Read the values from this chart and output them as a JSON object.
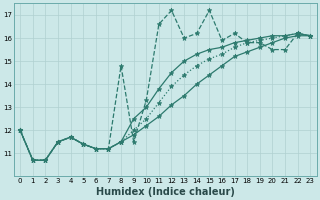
{
  "xlabel": "Humidex (Indice chaleur)",
  "ylabel": "",
  "xlim": [
    -0.5,
    23.5
  ],
  "ylim": [
    10.0,
    17.5
  ],
  "yticks": [
    11,
    12,
    13,
    14,
    15,
    16,
    17
  ],
  "xticks": [
    0,
    1,
    2,
    3,
    4,
    5,
    6,
    7,
    8,
    9,
    10,
    11,
    12,
    13,
    14,
    15,
    16,
    17,
    18,
    19,
    20,
    21,
    22,
    23
  ],
  "background_color": "#cce8e8",
  "grid_color": "#b0d0d0",
  "line_color": "#2d7a6e",
  "lines": [
    {
      "y": [
        12.0,
        10.7,
        10.7,
        11.5,
        11.7,
        11.4,
        11.2,
        11.2,
        14.8,
        11.5,
        13.3,
        16.6,
        17.2,
        16.0,
        16.2,
        17.2,
        15.9,
        16.2,
        15.8,
        15.8,
        15.5,
        15.5,
        16.2,
        16.1
      ],
      "style": "--",
      "lw": 0.9
    },
    {
      "y": [
        12.0,
        10.7,
        10.7,
        11.5,
        11.7,
        11.4,
        11.2,
        11.2,
        11.5,
        12.5,
        13.0,
        13.8,
        14.5,
        15.0,
        15.3,
        15.5,
        15.6,
        15.8,
        15.9,
        16.0,
        16.1,
        16.1,
        16.2,
        16.1
      ],
      "style": "-",
      "lw": 0.9
    },
    {
      "y": [
        12.0,
        10.7,
        10.7,
        11.5,
        11.7,
        11.4,
        11.2,
        11.2,
        11.5,
        11.8,
        12.2,
        12.6,
        13.1,
        13.5,
        14.0,
        14.4,
        14.8,
        15.2,
        15.4,
        15.6,
        15.8,
        16.0,
        16.1,
        16.1
      ],
      "style": "-",
      "lw": 0.9
    },
    {
      "y": [
        12.0,
        10.7,
        10.7,
        11.5,
        11.7,
        11.4,
        11.2,
        11.2,
        11.5,
        12.0,
        12.5,
        13.2,
        13.9,
        14.4,
        14.8,
        15.1,
        15.3,
        15.6,
        15.8,
        15.9,
        16.0,
        16.1,
        16.2,
        16.1
      ],
      "style": ":",
      "lw": 0.9
    }
  ],
  "marker": "*",
  "markersize": 3.5,
  "title_fontsize": 7,
  "xlabel_fontsize": 7,
  "tick_fontsize": 5
}
